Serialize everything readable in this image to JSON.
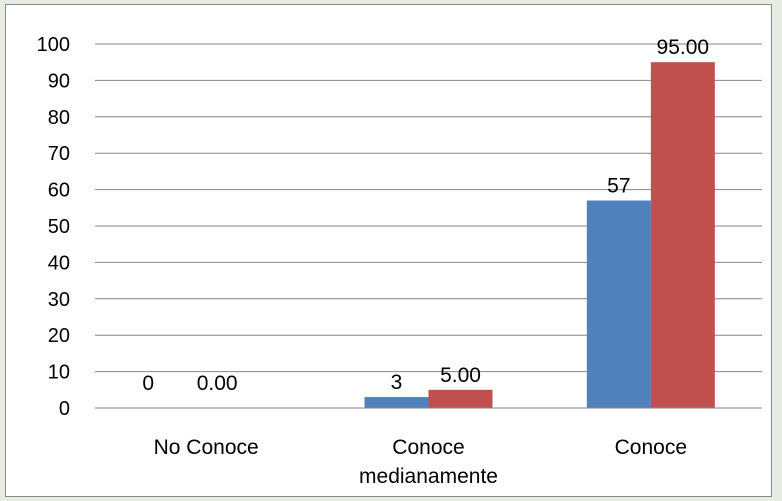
{
  "chart_data": {
    "type": "bar",
    "categories": [
      [
        "No Conoce"
      ],
      [
        "Conoce",
        "medianamente"
      ],
      [
        "Conoce"
      ]
    ],
    "series": [
      {
        "color": "#4f81bd",
        "values": [
          0,
          3,
          57
        ],
        "labels": [
          "0",
          "3",
          "57"
        ]
      },
      {
        "color": "#c0504d",
        "values": [
          0,
          5,
          95
        ],
        "labels": [
          "0.00",
          "5.00",
          "95.00"
        ]
      }
    ],
    "ylim": [
      0,
      100
    ],
    "yticks": [
      "0",
      "10",
      "20",
      "30",
      "40",
      "50",
      "60",
      "70",
      "80",
      "90",
      "100"
    ],
    "grid": true,
    "legend": "none"
  }
}
